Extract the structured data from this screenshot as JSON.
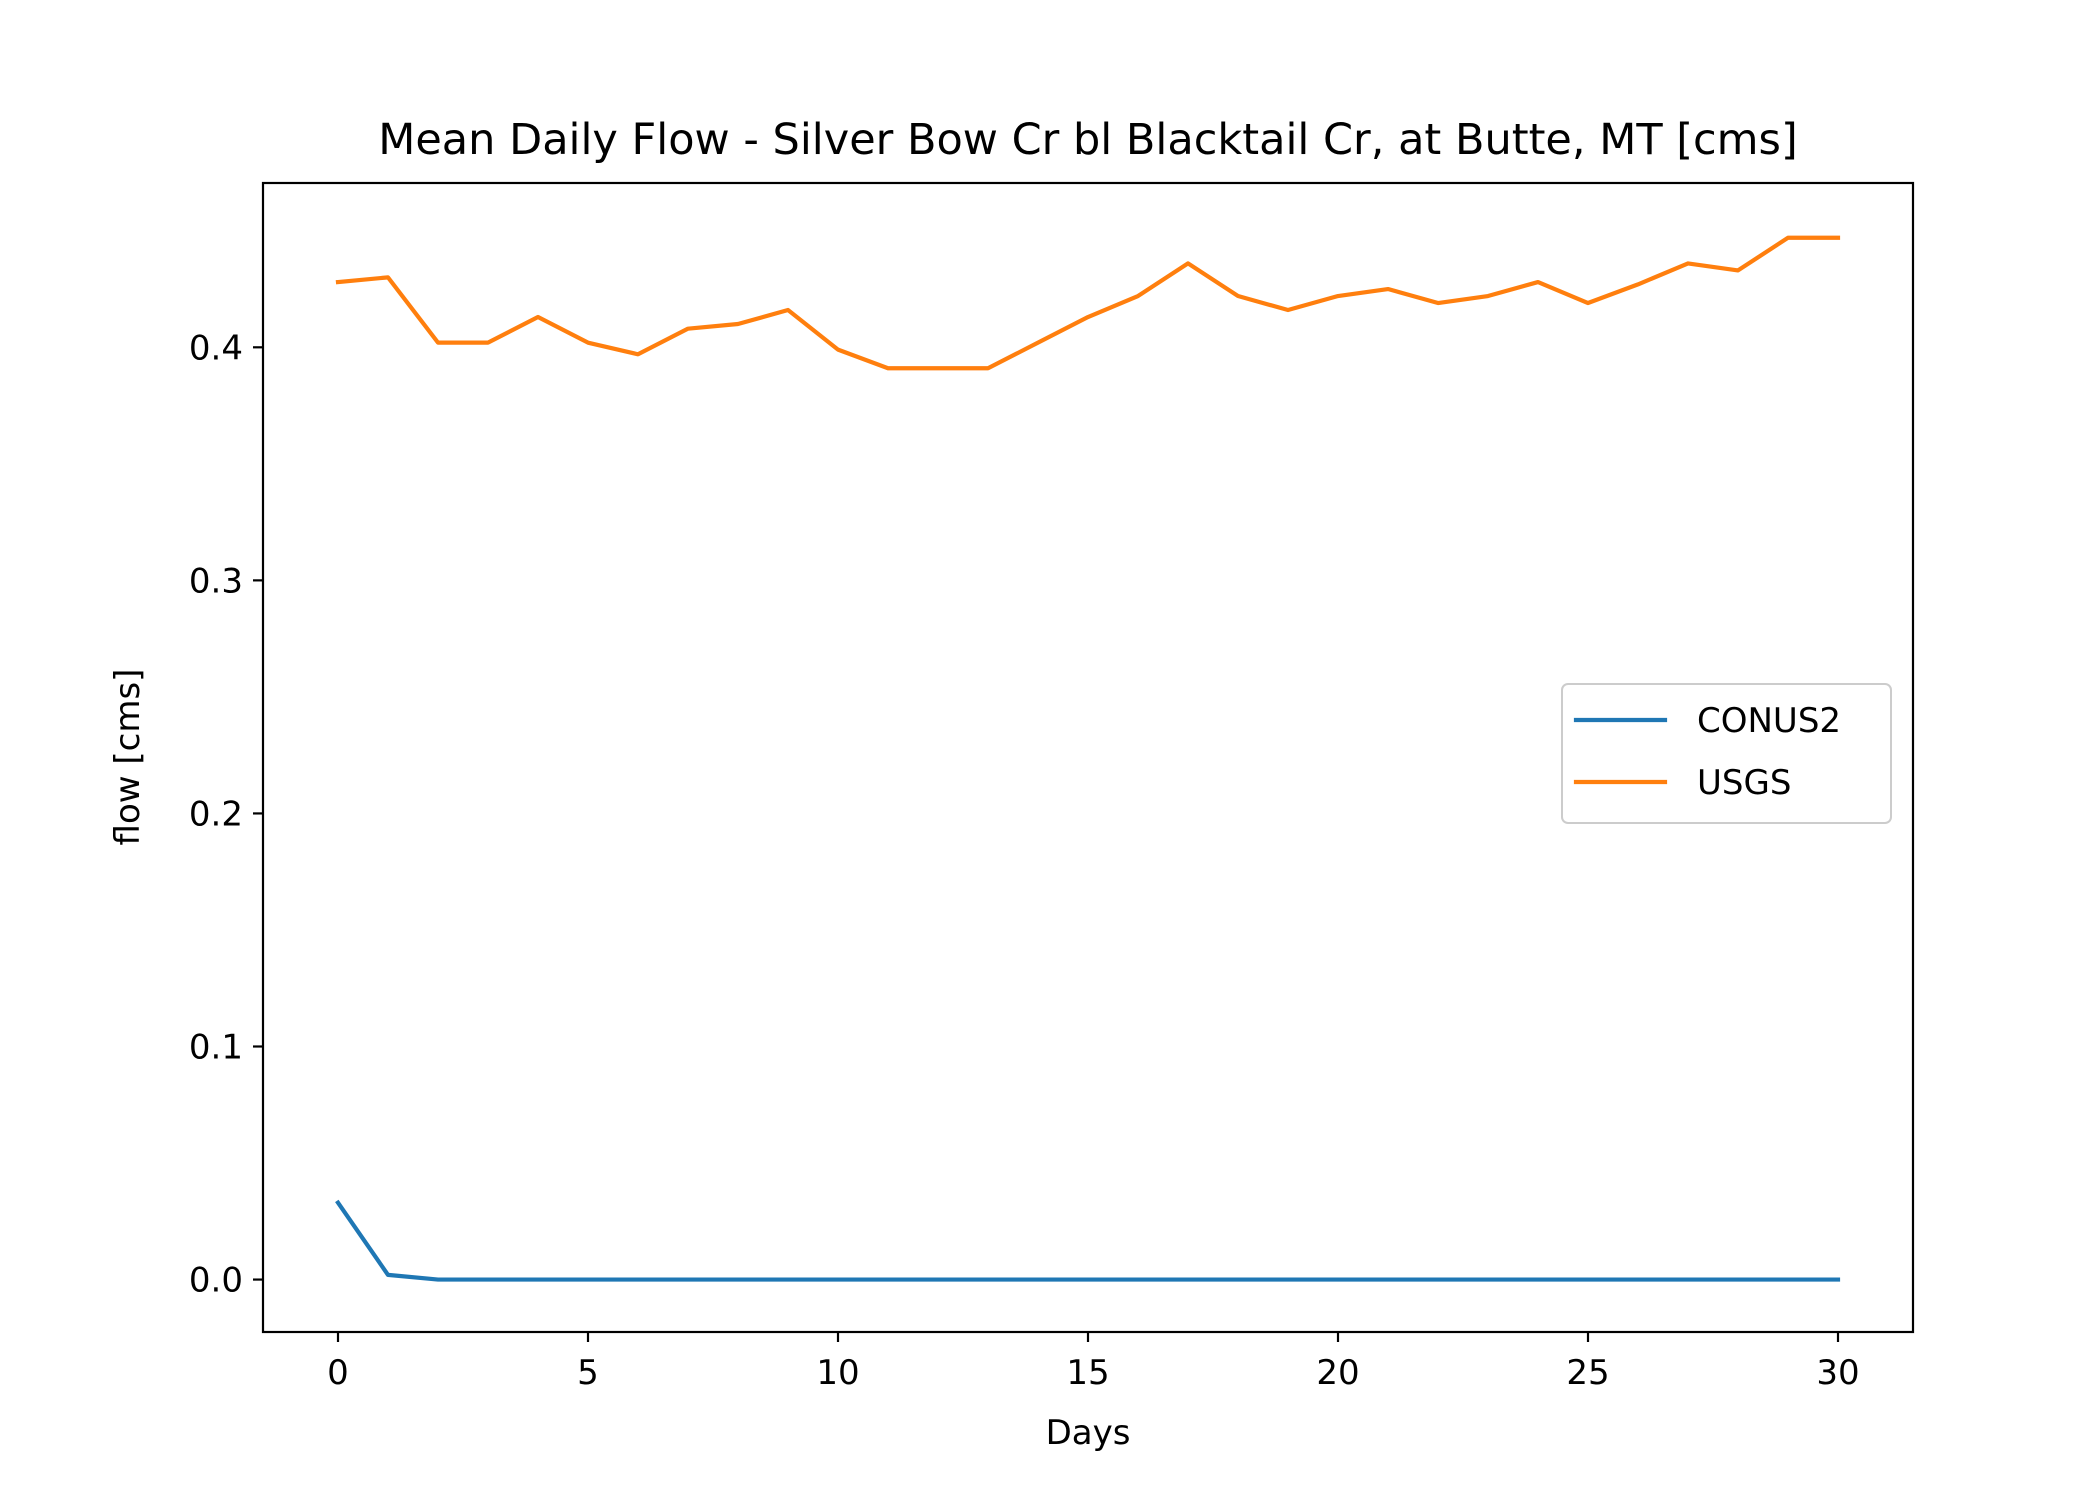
{
  "chart_data": {
    "type": "line",
    "title": "Mean Daily Flow - Silver Bow Cr bl Blacktail Cr, at Butte, MT [cms]",
    "xlabel": "Days",
    "ylabel": "flow [cms]",
    "xlim": [
      -1.5,
      31.5
    ],
    "ylim": [
      -0.0225,
      0.4705
    ],
    "xticks": [
      0,
      5,
      10,
      15,
      20,
      25,
      30
    ],
    "xtick_labels": [
      "0",
      "5",
      "10",
      "15",
      "20",
      "25",
      "30"
    ],
    "yticks": [
      0.0,
      0.1,
      0.2,
      0.3,
      0.4
    ],
    "ytick_labels": [
      "0.0",
      "0.1",
      "0.2",
      "0.3",
      "0.4"
    ],
    "grid": false,
    "legend_position": "center-right",
    "x": [
      0,
      1,
      2,
      3,
      4,
      5,
      6,
      7,
      8,
      9,
      10,
      11,
      12,
      13,
      14,
      15,
      16,
      17,
      18,
      19,
      20,
      21,
      22,
      23,
      24,
      25,
      26,
      27,
      28,
      29,
      30
    ],
    "series": [
      {
        "name": "CONUS2",
        "color": "#1f77b4",
        "values": [
          0.033,
          0.002,
          0,
          0,
          0,
          0,
          0,
          0,
          0,
          0,
          0,
          0,
          0,
          0,
          0,
          0,
          0,
          0,
          0,
          0,
          0,
          0,
          0,
          0,
          0,
          0,
          0,
          0,
          0,
          0,
          0
        ]
      },
      {
        "name": "USGS",
        "color": "#ff7f0e",
        "values": [
          0.428,
          0.43,
          0.402,
          0.402,
          0.413,
          0.402,
          0.397,
          0.408,
          0.41,
          0.416,
          0.399,
          0.391,
          0.391,
          0.391,
          0.402,
          0.413,
          0.422,
          0.436,
          0.422,
          0.416,
          0.422,
          0.425,
          0.419,
          0.422,
          0.428,
          0.419,
          0.427,
          0.436,
          0.433,
          0.447,
          0.447
        ]
      }
    ]
  }
}
